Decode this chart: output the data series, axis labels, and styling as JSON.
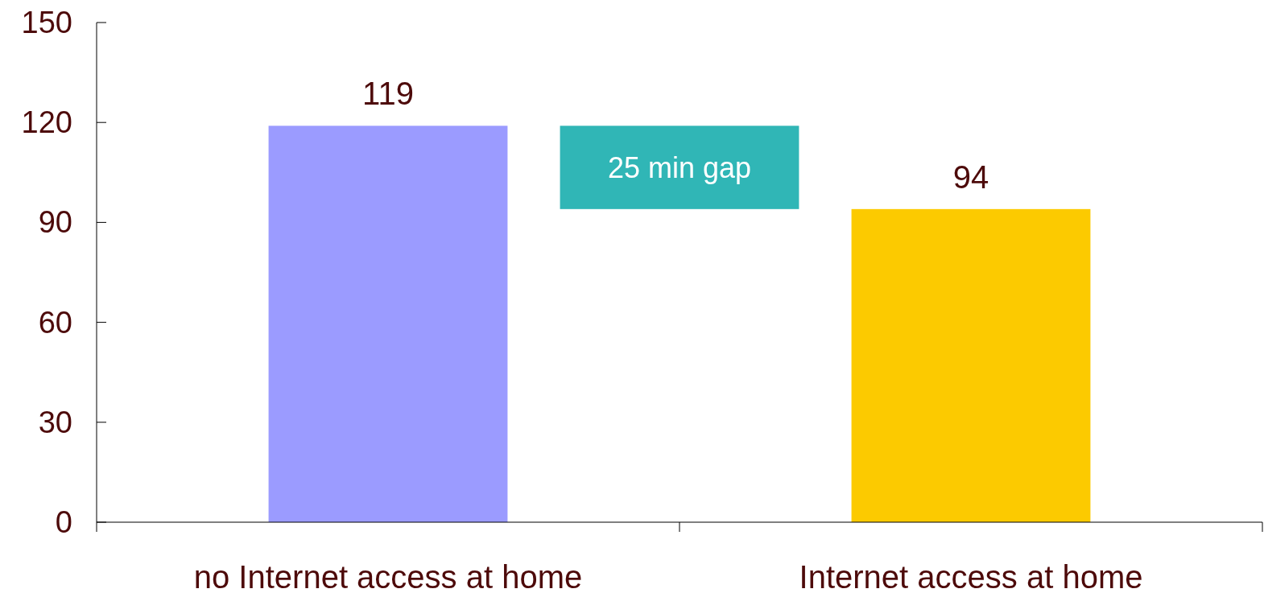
{
  "chart_data": {
    "type": "bar",
    "categories": [
      "no Internet access at home",
      null,
      "Internet access at home"
    ],
    "values": [
      119,
      25,
      94
    ],
    "base": [
      0,
      94,
      0
    ],
    "colors": [
      "#9b9bff",
      "#30b6b6",
      "#fcca00"
    ],
    "value_labels": [
      "119",
      "25 min gap",
      "94"
    ],
    "ylim": [
      0,
      150
    ],
    "yticks": [
      0,
      30,
      60,
      90,
      120,
      150
    ]
  }
}
